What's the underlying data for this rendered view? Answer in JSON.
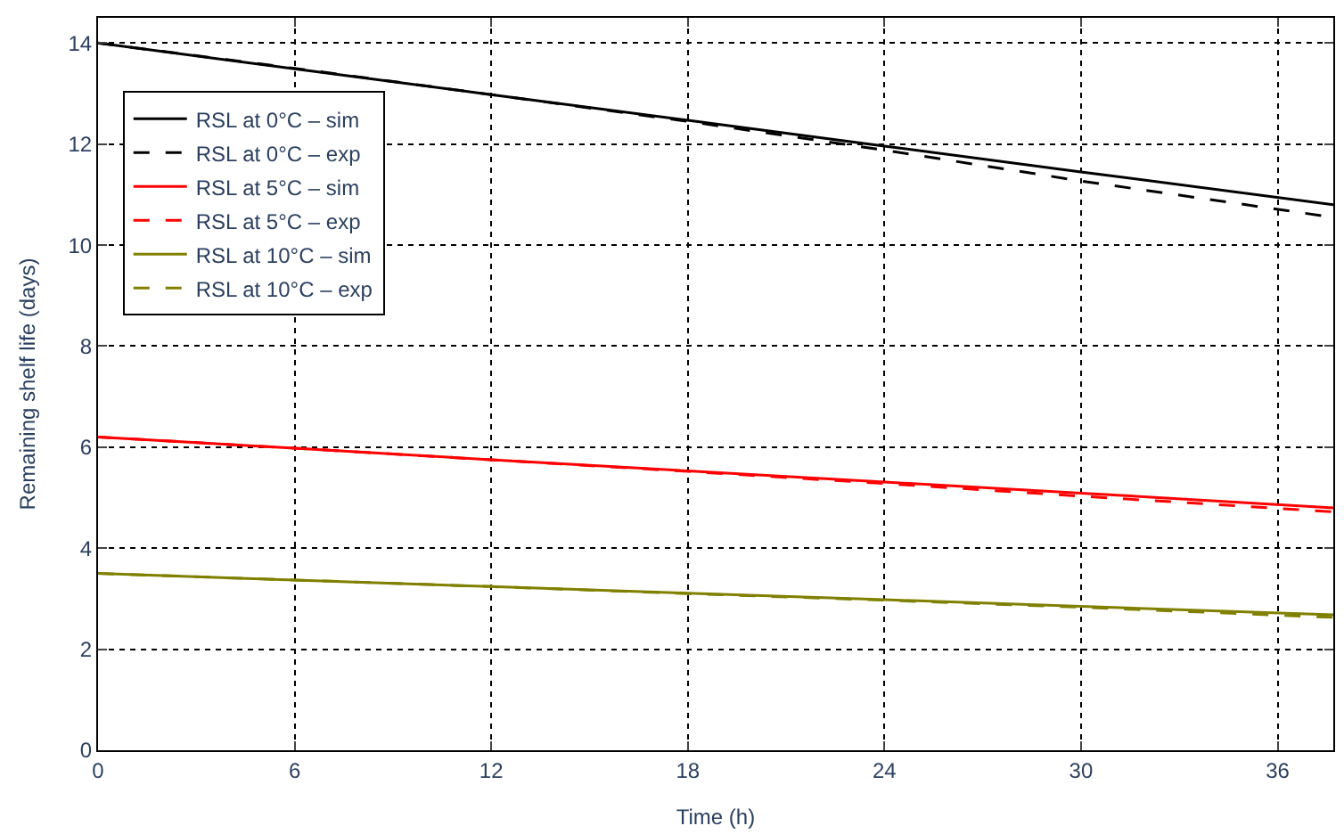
{
  "chart_data": {
    "type": "line",
    "xlabel": "Time (h)",
    "ylabel": "Remaining shelf life (days)",
    "x": [
      0,
      6,
      12,
      18,
      24,
      30,
      37.7
    ],
    "xlim": [
      0,
      37.7
    ],
    "xticks": [
      0,
      6,
      12,
      18,
      24,
      30,
      36
    ],
    "ylim": [
      0,
      14.5
    ],
    "yticks": [
      0,
      2,
      4,
      6,
      8,
      10,
      12,
      14
    ],
    "grid": true,
    "legend": "top left",
    "marker": "none",
    "series": [
      {
        "name": "RSL at 0°C – sim",
        "color": "#000000",
        "line_style": "solid",
        "values": [
          14,
          13.49,
          12.98,
          12.47,
          11.96,
          11.45,
          10.8
        ]
      },
      {
        "name": "RSL at 0°C – exp",
        "color": "#000000",
        "line_style": "dashed",
        "values": [
          14,
          13.5,
          12.98,
          12.45,
          11.88,
          11.27,
          10.55
        ]
      },
      {
        "name": "RSL at 5°C – sim",
        "color": "#ff0000",
        "line_style": "solid",
        "values": [
          6.2,
          5.98,
          5.75,
          5.53,
          5.31,
          5.09,
          4.8
        ]
      },
      {
        "name": "RSL at 5°C – exp",
        "color": "#ff0000",
        "line_style": "dashed",
        "values": [
          6.2,
          5.98,
          5.75,
          5.52,
          5.28,
          5.03,
          4.72
        ]
      },
      {
        "name": "RSL at 10°C – sim",
        "color": "#808000",
        "line_style": "solid",
        "values": [
          3.5,
          3.37,
          3.24,
          3.11,
          2.98,
          2.85,
          2.68
        ]
      },
      {
        "name": "RSL at 10°C – exp",
        "color": "#808000",
        "line_style": "dashed",
        "values": [
          3.5,
          3.37,
          3.24,
          3.1,
          2.97,
          2.83,
          2.63
        ]
      }
    ]
  }
}
